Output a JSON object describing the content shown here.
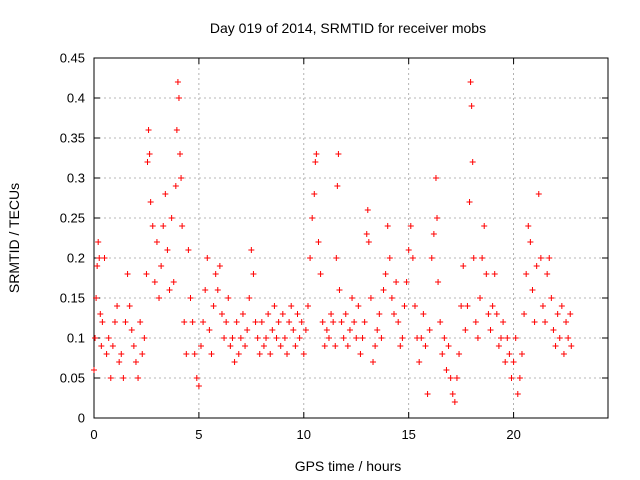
{
  "chart_data": {
    "type": "scatter",
    "title": "Day 019 of 2014, SRMTID for receiver mobs",
    "xlabel": "GPS time / hours",
    "ylabel": "SRMTID / TECUs",
    "xlim": [
      0,
      24.5
    ],
    "ylim": [
      0,
      0.45
    ],
    "xticks": [
      0,
      5,
      10,
      15,
      20
    ],
    "xtick_labels": [
      "0",
      "5",
      "10",
      "15",
      "20"
    ],
    "yticks": [
      0,
      0.05,
      0.1,
      0.15,
      0.2,
      0.25,
      0.3,
      0.35,
      0.4,
      0.45
    ],
    "ytick_labels": [
      "0",
      "0.05",
      "0.1",
      "0.15",
      "0.2",
      "0.25",
      "0.3",
      "0.35",
      "0.4",
      "0.45"
    ],
    "grid": true,
    "series": [
      {
        "name": "SRMTID",
        "marker": "+",
        "color": "#ff0000",
        "points": [
          [
            0.0,
            0.06
          ],
          [
            0.05,
            0.1
          ],
          [
            0.1,
            0.15
          ],
          [
            0.15,
            0.19
          ],
          [
            0.2,
            0.22
          ],
          [
            0.25,
            0.2
          ],
          [
            0.3,
            0.13
          ],
          [
            0.35,
            0.09
          ],
          [
            0.4,
            0.12
          ],
          [
            0.5,
            0.2
          ],
          [
            0.6,
            0.08
          ],
          [
            0.7,
            0.1
          ],
          [
            0.8,
            0.05
          ],
          [
            0.9,
            0.09
          ],
          [
            1.0,
            0.12
          ],
          [
            1.1,
            0.14
          ],
          [
            1.2,
            0.07
          ],
          [
            1.3,
            0.08
          ],
          [
            1.4,
            0.05
          ],
          [
            1.5,
            0.12
          ],
          [
            1.6,
            0.18
          ],
          [
            1.7,
            0.14
          ],
          [
            1.8,
            0.11
          ],
          [
            1.9,
            0.09
          ],
          [
            2.0,
            0.07
          ],
          [
            2.1,
            0.05
          ],
          [
            2.2,
            0.12
          ],
          [
            2.3,
            0.08
          ],
          [
            2.4,
            0.1
          ],
          [
            2.5,
            0.18
          ],
          [
            2.55,
            0.32
          ],
          [
            2.6,
            0.36
          ],
          [
            2.65,
            0.33
          ],
          [
            2.7,
            0.27
          ],
          [
            2.8,
            0.24
          ],
          [
            2.9,
            0.17
          ],
          [
            3.0,
            0.22
          ],
          [
            3.1,
            0.15
          ],
          [
            3.2,
            0.19
          ],
          [
            3.3,
            0.24
          ],
          [
            3.4,
            0.28
          ],
          [
            3.5,
            0.21
          ],
          [
            3.6,
            0.16
          ],
          [
            3.7,
            0.25
          ],
          [
            3.8,
            0.17
          ],
          [
            3.9,
            0.29
          ],
          [
            3.95,
            0.36
          ],
          [
            4.0,
            0.42
          ],
          [
            4.05,
            0.4
          ],
          [
            4.1,
            0.33
          ],
          [
            4.15,
            0.3
          ],
          [
            4.2,
            0.24
          ],
          [
            4.3,
            0.12
          ],
          [
            4.4,
            0.08
          ],
          [
            4.5,
            0.21
          ],
          [
            4.6,
            0.15
          ],
          [
            4.7,
            0.12
          ],
          [
            4.8,
            0.08
          ],
          [
            4.9,
            0.05
          ],
          [
            5.0,
            0.04
          ],
          [
            5.1,
            0.09
          ],
          [
            5.2,
            0.12
          ],
          [
            5.3,
            0.16
          ],
          [
            5.4,
            0.2
          ],
          [
            5.5,
            0.11
          ],
          [
            5.6,
            0.08
          ],
          [
            5.7,
            0.14
          ],
          [
            5.8,
            0.18
          ],
          [
            5.9,
            0.16
          ],
          [
            6.0,
            0.19
          ],
          [
            6.1,
            0.13
          ],
          [
            6.2,
            0.1
          ],
          [
            6.3,
            0.12
          ],
          [
            6.4,
            0.15
          ],
          [
            6.5,
            0.09
          ],
          [
            6.6,
            0.1
          ],
          [
            6.7,
            0.07
          ],
          [
            6.8,
            0.12
          ],
          [
            6.9,
            0.08
          ],
          [
            7.0,
            0.1
          ],
          [
            7.1,
            0.13
          ],
          [
            7.2,
            0.09
          ],
          [
            7.3,
            0.11
          ],
          [
            7.4,
            0.15
          ],
          [
            7.5,
            0.21
          ],
          [
            7.6,
            0.18
          ],
          [
            7.7,
            0.12
          ],
          [
            7.8,
            0.1
          ],
          [
            7.9,
            0.08
          ],
          [
            8.0,
            0.12
          ],
          [
            8.1,
            0.09
          ],
          [
            8.2,
            0.1
          ],
          [
            8.3,
            0.13
          ],
          [
            8.4,
            0.08
          ],
          [
            8.5,
            0.11
          ],
          [
            8.6,
            0.14
          ],
          [
            8.7,
            0.1
          ],
          [
            8.8,
            0.12
          ],
          [
            8.9,
            0.09
          ],
          [
            9.0,
            0.13
          ],
          [
            9.1,
            0.1
          ],
          [
            9.2,
            0.08
          ],
          [
            9.3,
            0.12
          ],
          [
            9.4,
            0.14
          ],
          [
            9.5,
            0.11
          ],
          [
            9.6,
            0.09
          ],
          [
            9.7,
            0.13
          ],
          [
            9.8,
            0.1
          ],
          [
            9.9,
            0.12
          ],
          [
            10.0,
            0.08
          ],
          [
            10.1,
            0.11
          ],
          [
            10.2,
            0.14
          ],
          [
            10.3,
            0.2
          ],
          [
            10.4,
            0.25
          ],
          [
            10.5,
            0.28
          ],
          [
            10.55,
            0.32
          ],
          [
            10.6,
            0.33
          ],
          [
            10.7,
            0.22
          ],
          [
            10.8,
            0.18
          ],
          [
            10.9,
            0.12
          ],
          [
            11.0,
            0.09
          ],
          [
            11.1,
            0.11
          ],
          [
            11.2,
            0.1
          ],
          [
            11.3,
            0.13
          ],
          [
            11.4,
            0.12
          ],
          [
            11.5,
            0.09
          ],
          [
            11.55,
            0.2
          ],
          [
            11.6,
            0.29
          ],
          [
            11.65,
            0.33
          ],
          [
            11.7,
            0.16
          ],
          [
            11.8,
            0.12
          ],
          [
            11.9,
            0.1
          ],
          [
            12.0,
            0.13
          ],
          [
            12.1,
            0.09
          ],
          [
            12.2,
            0.11
          ],
          [
            12.3,
            0.15
          ],
          [
            12.4,
            0.12
          ],
          [
            12.5,
            0.1
          ],
          [
            12.6,
            0.14
          ],
          [
            12.7,
            0.08
          ],
          [
            12.8,
            0.1
          ],
          [
            12.9,
            0.12
          ],
          [
            13.0,
            0.23
          ],
          [
            13.05,
            0.26
          ],
          [
            13.1,
            0.22
          ],
          [
            13.2,
            0.15
          ],
          [
            13.3,
            0.07
          ],
          [
            13.4,
            0.09
          ],
          [
            13.5,
            0.11
          ],
          [
            13.6,
            0.13
          ],
          [
            13.7,
            0.1
          ],
          [
            13.8,
            0.16
          ],
          [
            13.9,
            0.18
          ],
          [
            14.0,
            0.24
          ],
          [
            14.1,
            0.2
          ],
          [
            14.2,
            0.15
          ],
          [
            14.3,
            0.13
          ],
          [
            14.4,
            0.17
          ],
          [
            14.5,
            0.12
          ],
          [
            14.6,
            0.09
          ],
          [
            14.7,
            0.1
          ],
          [
            14.8,
            0.14
          ],
          [
            14.9,
            0.17
          ],
          [
            15.0,
            0.21
          ],
          [
            15.1,
            0.24
          ],
          [
            15.2,
            0.2
          ],
          [
            15.3,
            0.14
          ],
          [
            15.4,
            0.1
          ],
          [
            15.5,
            0.07
          ],
          [
            15.6,
            0.1
          ],
          [
            15.7,
            0.13
          ],
          [
            15.8,
            0.09
          ],
          [
            15.9,
            0.03
          ],
          [
            16.0,
            0.11
          ],
          [
            16.1,
            0.2
          ],
          [
            16.2,
            0.23
          ],
          [
            16.3,
            0.3
          ],
          [
            16.35,
            0.25
          ],
          [
            16.4,
            0.17
          ],
          [
            16.5,
            0.12
          ],
          [
            16.6,
            0.08
          ],
          [
            16.7,
            0.1
          ],
          [
            16.8,
            0.06
          ],
          [
            16.9,
            0.09
          ],
          [
            17.0,
            0.05
          ],
          [
            17.1,
            0.03
          ],
          [
            17.2,
            0.02
          ],
          [
            17.3,
            0.05
          ],
          [
            17.4,
            0.08
          ],
          [
            17.5,
            0.14
          ],
          [
            17.6,
            0.19
          ],
          [
            17.7,
            0.11
          ],
          [
            17.8,
            0.14
          ],
          [
            17.9,
            0.27
          ],
          [
            17.95,
            0.42
          ],
          [
            18.0,
            0.39
          ],
          [
            18.05,
            0.32
          ],
          [
            18.1,
            0.2
          ],
          [
            18.2,
            0.12
          ],
          [
            18.3,
            0.1
          ],
          [
            18.4,
            0.15
          ],
          [
            18.5,
            0.2
          ],
          [
            18.6,
            0.24
          ],
          [
            18.7,
            0.18
          ],
          [
            18.8,
            0.13
          ],
          [
            18.9,
            0.11
          ],
          [
            19.0,
            0.14
          ],
          [
            19.1,
            0.18
          ],
          [
            19.2,
            0.13
          ],
          [
            19.3,
            0.09
          ],
          [
            19.4,
            0.1
          ],
          [
            19.5,
            0.12
          ],
          [
            19.6,
            0.07
          ],
          [
            19.7,
            0.1
          ],
          [
            19.8,
            0.08
          ],
          [
            19.9,
            0.05
          ],
          [
            20.0,
            0.07
          ],
          [
            20.1,
            0.1
          ],
          [
            20.2,
            0.03
          ],
          [
            20.3,
            0.05
          ],
          [
            20.4,
            0.08
          ],
          [
            20.5,
            0.13
          ],
          [
            20.6,
            0.18
          ],
          [
            20.7,
            0.24
          ],
          [
            20.8,
            0.22
          ],
          [
            20.9,
            0.16
          ],
          [
            21.0,
            0.12
          ],
          [
            21.1,
            0.19
          ],
          [
            21.2,
            0.28
          ],
          [
            21.3,
            0.2
          ],
          [
            21.4,
            0.14
          ],
          [
            21.5,
            0.12
          ],
          [
            21.6,
            0.18
          ],
          [
            21.7,
            0.2
          ],
          [
            21.8,
            0.15
          ],
          [
            21.9,
            0.11
          ],
          [
            22.0,
            0.09
          ],
          [
            22.1,
            0.13
          ],
          [
            22.2,
            0.1
          ],
          [
            22.3,
            0.14
          ],
          [
            22.4,
            0.08
          ],
          [
            22.5,
            0.12
          ],
          [
            22.6,
            0.1
          ],
          [
            22.7,
            0.13
          ],
          [
            22.75,
            0.09
          ]
        ]
      }
    ]
  }
}
